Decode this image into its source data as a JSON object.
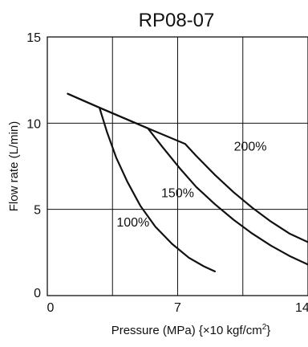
{
  "chart_data": {
    "type": "line",
    "title": "RP08-07",
    "xlabel": "Pressure (MPa) {×10 kgf/cm",
    "xlabel_sup": "2",
    "xlabel_tail": "}",
    "ylabel": "Flow rate (L/min)",
    "xlim": [
      0,
      14
    ],
    "ylim": [
      0,
      15
    ],
    "xticks": [
      "0",
      "7",
      "14"
    ],
    "xtick_values": [
      0,
      7,
      14
    ],
    "yticks": [
      "0",
      "5",
      "10",
      "15"
    ],
    "ytick_values": [
      0,
      5,
      10,
      15
    ],
    "grid": true,
    "series": [
      {
        "name": "100%",
        "label_at": [
          4.6,
          4.0
        ],
        "points": [
          [
            2.8,
            10.9
          ],
          [
            3.2,
            9.5
          ],
          [
            3.7,
            8.0
          ],
          [
            4.3,
            6.6
          ],
          [
            5.0,
            5.2
          ],
          [
            5.8,
            4.0
          ],
          [
            6.7,
            3.0
          ],
          [
            7.6,
            2.2
          ],
          [
            8.4,
            1.7
          ],
          [
            9.0,
            1.4
          ]
        ]
      },
      {
        "name": "150%",
        "label_at": [
          7.0,
          5.7
        ],
        "points": [
          [
            1.1,
            11.7
          ],
          [
            2.8,
            10.9
          ],
          [
            5.4,
            9.7
          ],
          [
            6.2,
            8.6
          ],
          [
            7.1,
            7.4
          ],
          [
            8.0,
            6.3
          ],
          [
            9.0,
            5.3
          ],
          [
            10.0,
            4.4
          ],
          [
            11.0,
            3.6
          ],
          [
            12.0,
            2.9
          ],
          [
            13.0,
            2.3
          ],
          [
            14.0,
            1.8
          ]
        ]
      },
      {
        "name": "200%",
        "label_at": [
          10.9,
          8.4
        ],
        "points": [
          [
            1.1,
            11.7
          ],
          [
            2.8,
            10.9
          ],
          [
            5.4,
            9.7
          ],
          [
            7.4,
            8.8
          ],
          [
            8.0,
            8.1
          ],
          [
            9.0,
            7.0
          ],
          [
            10.0,
            6.0
          ],
          [
            11.0,
            5.1
          ],
          [
            12.0,
            4.3
          ],
          [
            13.0,
            3.6
          ],
          [
            14.0,
            3.1
          ]
        ]
      }
    ]
  }
}
